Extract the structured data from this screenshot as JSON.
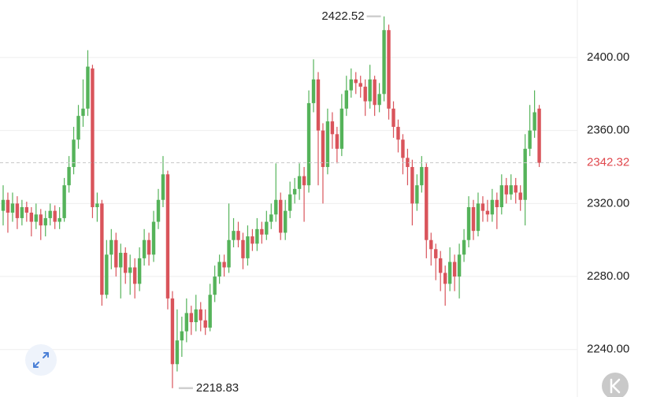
{
  "chart_data": {
    "type": "candlestick",
    "up_color": "#55b35a",
    "down_color": "#d9545b",
    "ylim": [
      2214,
      2431.5
    ],
    "yticks": [
      {
        "value": 2240,
        "label": "2240.00"
      },
      {
        "value": 2280,
        "label": "2280.00"
      },
      {
        "value": 2320,
        "label": "2320.00"
      },
      {
        "value": 2360,
        "label": "2360.00"
      },
      {
        "value": 2400,
        "label": "2400.00"
      }
    ],
    "grid": true,
    "candles": [
      [
        2316,
        2330,
        2308,
        2322
      ],
      [
        2322,
        2326,
        2304,
        2315
      ],
      [
        2315,
        2326,
        2310,
        2320
      ],
      [
        2320,
        2324,
        2306,
        2312
      ],
      [
        2312,
        2322,
        2308,
        2318
      ],
      [
        2318,
        2321,
        2310,
        2315
      ],
      [
        2315,
        2318,
        2302,
        2310
      ],
      [
        2310,
        2320,
        2306,
        2314
      ],
      [
        2314,
        2317,
        2300,
        2308
      ],
      [
        2308,
        2316,
        2302,
        2312
      ],
      [
        2312,
        2320,
        2308,
        2316
      ],
      [
        2316,
        2319,
        2306,
        2310
      ],
      [
        2310,
        2318,
        2306,
        2312
      ],
      [
        2312,
        2334,
        2310,
        2330
      ],
      [
        2330,
        2346,
        2326,
        2340
      ],
      [
        2340,
        2362,
        2336,
        2355
      ],
      [
        2355,
        2374,
        2350,
        2368
      ],
      [
        2368,
        2388,
        2362,
        2372
      ],
      [
        2372,
        2404,
        2368,
        2395
      ],
      [
        2394,
        2396,
        2312,
        2318
      ],
      [
        2318,
        2326,
        2310,
        2320
      ],
      [
        2320,
        2322,
        2264,
        2270
      ],
      [
        2270,
        2300,
        2268,
        2292
      ],
      [
        2292,
        2306,
        2284,
        2300
      ],
      [
        2300,
        2304,
        2280,
        2285
      ],
      [
        2285,
        2298,
        2268,
        2293
      ],
      [
        2293,
        2296,
        2276,
        2282
      ],
      [
        2282,
        2292,
        2270,
        2285
      ],
      [
        2285,
        2290,
        2268,
        2276
      ],
      [
        2276,
        2296,
        2272,
        2290
      ],
      [
        2290,
        2306,
        2286,
        2300
      ],
      [
        2300,
        2304,
        2286,
        2292
      ],
      [
        2292,
        2316,
        2288,
        2310
      ],
      [
        2310,
        2328,
        2306,
        2322
      ],
      [
        2322,
        2346,
        2318,
        2336
      ],
      [
        2336,
        2338,
        2262,
        2268
      ],
      [
        2268,
        2272,
        2218.83,
        2232
      ],
      [
        2232,
        2262,
        2228,
        2245
      ],
      [
        2245,
        2258,
        2236,
        2250
      ],
      [
        2250,
        2268,
        2244,
        2260
      ],
      [
        2260,
        2264,
        2248,
        2255
      ],
      [
        2255,
        2270,
        2250,
        2262
      ],
      [
        2262,
        2266,
        2250,
        2256
      ],
      [
        2256,
        2262,
        2248,
        2252
      ],
      [
        2252,
        2276,
        2250,
        2270
      ],
      [
        2270,
        2286,
        2266,
        2280
      ],
      [
        2280,
        2292,
        2276,
        2288
      ],
      [
        2288,
        2292,
        2280,
        2285
      ],
      [
        2285,
        2320,
        2282,
        2300
      ],
      [
        2300,
        2312,
        2296,
        2305
      ],
      [
        2305,
        2310,
        2296,
        2300
      ],
      [
        2300,
        2304,
        2284,
        2290
      ],
      [
        2290,
        2308,
        2286,
        2302
      ],
      [
        2302,
        2306,
        2294,
        2298
      ],
      [
        2298,
        2312,
        2294,
        2306
      ],
      [
        2306,
        2310,
        2298,
        2303
      ],
      [
        2303,
        2316,
        2300,
        2310
      ],
      [
        2310,
        2320,
        2306,
        2314
      ],
      [
        2314,
        2342,
        2310,
        2322
      ],
      [
        2322,
        2326,
        2300,
        2304
      ],
      [
        2304,
        2322,
        2300,
        2316
      ],
      [
        2316,
        2332,
        2312,
        2325
      ],
      [
        2325,
        2334,
        2320,
        2328
      ],
      [
        2328,
        2342,
        2322,
        2335
      ],
      [
        2335,
        2340,
        2310,
        2330
      ],
      [
        2330,
        2382,
        2326,
        2375
      ],
      [
        2375,
        2399,
        2370,
        2388
      ],
      [
        2388,
        2392,
        2330,
        2360
      ],
      [
        2360,
        2364,
        2320,
        2340
      ],
      [
        2340,
        2372,
        2336,
        2365
      ],
      [
        2365,
        2370,
        2350,
        2358
      ],
      [
        2358,
        2362,
        2342,
        2350
      ],
      [
        2350,
        2380,
        2346,
        2372
      ],
      [
        2372,
        2390,
        2368,
        2382
      ],
      [
        2382,
        2394,
        2378,
        2388
      ],
      [
        2388,
        2392,
        2380,
        2386
      ],
      [
        2386,
        2390,
        2378,
        2384
      ],
      [
        2384,
        2388,
        2368,
        2376
      ],
      [
        2376,
        2396,
        2372,
        2388
      ],
      [
        2388,
        2390,
        2368,
        2374
      ],
      [
        2374,
        2386,
        2370,
        2380
      ],
      [
        2380,
        2422.52,
        2376,
        2415
      ],
      [
        2415,
        2418,
        2366,
        2372
      ],
      [
        2372,
        2376,
        2356,
        2362
      ],
      [
        2362,
        2366,
        2348,
        2355
      ],
      [
        2355,
        2358,
        2336,
        2345
      ],
      [
        2345,
        2350,
        2330,
        2340
      ],
      [
        2340,
        2344,
        2308,
        2320
      ],
      [
        2320,
        2336,
        2316,
        2330
      ],
      [
        2330,
        2346,
        2326,
        2340
      ],
      [
        2340,
        2342,
        2290,
        2300
      ],
      [
        2300,
        2304,
        2286,
        2295
      ],
      [
        2295,
        2298,
        2278,
        2290
      ],
      [
        2290,
        2294,
        2272,
        2282
      ],
      [
        2282,
        2286,
        2264,
        2276
      ],
      [
        2276,
        2296,
        2272,
        2288
      ],
      [
        2288,
        2292,
        2272,
        2280
      ],
      [
        2280,
        2298,
        2268,
        2292
      ],
      [
        2292,
        2306,
        2288,
        2300
      ],
      [
        2300,
        2324,
        2296,
        2318
      ],
      [
        2318,
        2322,
        2300,
        2305
      ],
      [
        2305,
        2326,
        2302,
        2320
      ],
      [
        2320,
        2324,
        2310,
        2316
      ],
      [
        2316,
        2322,
        2310,
        2314
      ],
      [
        2314,
        2328,
        2310,
        2322
      ],
      [
        2322,
        2326,
        2306,
        2318
      ],
      [
        2318,
        2336,
        2314,
        2330
      ],
      [
        2330,
        2334,
        2320,
        2325
      ],
      [
        2325,
        2336,
        2322,
        2330
      ],
      [
        2330,
        2334,
        2320,
        2326
      ],
      [
        2326,
        2330,
        2316,
        2322
      ],
      [
        2322,
        2358,
        2308,
        2350
      ],
      [
        2350,
        2374,
        2346,
        2360
      ],
      [
        2360,
        2382,
        2356,
        2370
      ],
      [
        2372,
        2374,
        2340,
        2342.32
      ]
    ]
  }
}
